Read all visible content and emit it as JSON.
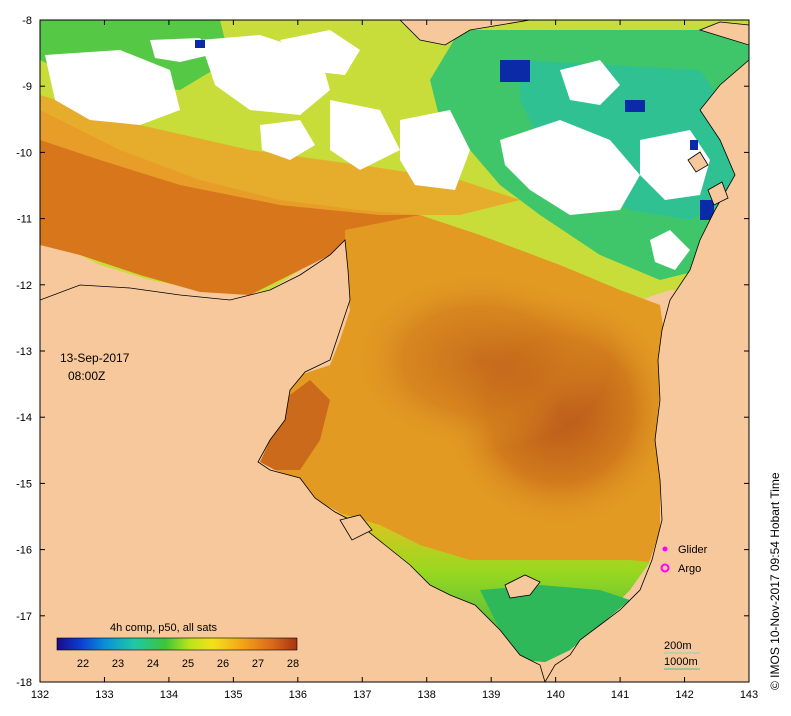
{
  "map": {
    "date": "13-Sep-2017",
    "time": "08:00Z",
    "credit": "© IMOS 10-Nov-2017 09:54 Hobart Time",
    "x_axis": {
      "min": 132,
      "max": 143,
      "ticks": [
        "132",
        "133",
        "134",
        "135",
        "136",
        "137",
        "138",
        "139",
        "140",
        "141",
        "142",
        "143"
      ]
    },
    "y_axis": {
      "min": -18,
      "max": -8,
      "ticks": [
        "-8",
        "-9",
        "-10",
        "-11",
        "-12",
        "-13",
        "-14",
        "-15",
        "-16",
        "-17",
        "-18"
      ]
    }
  },
  "legend": {
    "composite_label": "4h comp, p50, all sats",
    "colorbar_ticks": [
      "22",
      "23",
      "24",
      "25",
      "26",
      "27",
      "28"
    ],
    "symbols": [
      {
        "label": "Glider",
        "color": "#ff00ff"
      },
      {
        "label": "Argo",
        "color": "#ff00ff"
      }
    ],
    "contours": [
      {
        "label": "200m",
        "color": "#7fd6c0"
      },
      {
        "label": "1000m",
        "color": "#3fbfa0"
      }
    ]
  },
  "colors": {
    "land": "#f7c89b",
    "no_data": "#ffffff",
    "warm": "#b44a12",
    "mid": "#e59a1e",
    "cool": "#19a85a"
  }
}
